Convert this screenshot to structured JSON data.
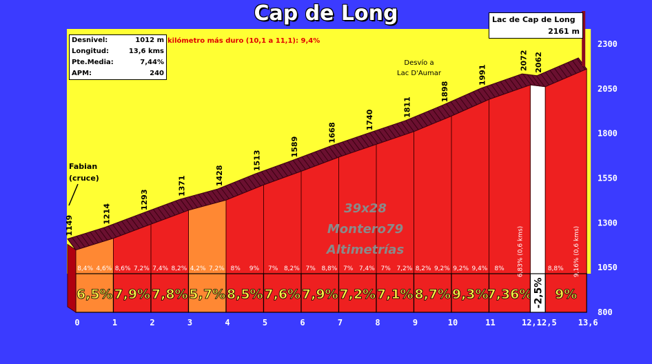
{
  "title": "Cap de Long",
  "stats": [
    {
      "label": "Desnivel:",
      "value": "1012 m"
    },
    {
      "label": "Longitud:",
      "value": "13,6 kms"
    },
    {
      "label": "Pte.Media:",
      "value": "7,44%"
    },
    {
      "label": "APM:",
      "value": "240"
    }
  ],
  "hardest_km_note": "kilómetro más duro (10,1 a 11,1):   9,4%",
  "summit": {
    "name": "Lac de Cap de Long",
    "altitude": "2161 m"
  },
  "start_label": [
    "Fabian",
    "(cruce)"
  ],
  "branch_label": [
    "Desvío a",
    "Lac D'Aumar"
  ],
  "watermark": [
    "39x28",
    "Montero79",
    "Altimetrías"
  ],
  "colors": {
    "background": "#3b3bff",
    "sky": "#ffff33",
    "bar": "#ee2020",
    "bar_easy": "#ff8833",
    "bar_descent": "#ffffff",
    "crest": "#6b1030"
  },
  "chart_data": {
    "type": "area",
    "xlabel": "",
    "ylabel": "",
    "ylim": [
      800,
      2300
    ],
    "y_ticks": [
      800,
      1050,
      1300,
      1550,
      1800,
      2050,
      2300
    ],
    "x_tick_labels": [
      "0",
      "1",
      "2",
      "3",
      "4",
      "5",
      "6",
      "7",
      "8",
      "9",
      "10",
      "11",
      "12,1",
      "12,5",
      "13,6"
    ],
    "altitude_points": [
      {
        "km": 0,
        "label": "1149"
      },
      {
        "km": 1,
        "label": "1214"
      },
      {
        "km": 2,
        "label": "1293"
      },
      {
        "km": 3,
        "label": "1371"
      },
      {
        "km": 4,
        "label": "1428"
      },
      {
        "km": 5,
        "label": "1513"
      },
      {
        "km": 6,
        "label": "1589"
      },
      {
        "km": 7,
        "label": "1668"
      },
      {
        "km": 8,
        "label": "1740"
      },
      {
        "km": 9,
        "label": "1811"
      },
      {
        "km": 10,
        "label": "1898"
      },
      {
        "km": 11,
        "label": "1991"
      },
      {
        "km": 12.1,
        "label": "2072"
      },
      {
        "km": 12.5,
        "label": "2062"
      }
    ],
    "profile": [
      {
        "km": 0,
        "alt": 1149
      },
      {
        "km": 1,
        "alt": 1214
      },
      {
        "km": 2,
        "alt": 1293
      },
      {
        "km": 3,
        "alt": 1371
      },
      {
        "km": 4,
        "alt": 1428
      },
      {
        "km": 5,
        "alt": 1513
      },
      {
        "km": 6,
        "alt": 1589
      },
      {
        "km": 7,
        "alt": 1668
      },
      {
        "km": 8,
        "alt": 1740
      },
      {
        "km": 9,
        "alt": 1811
      },
      {
        "km": 10,
        "alt": 1898
      },
      {
        "km": 11,
        "alt": 1991
      },
      {
        "km": 12.1,
        "alt": 2072
      },
      {
        "km": 12.5,
        "alt": 2062
      },
      {
        "km": 13.6,
        "alt": 2161
      }
    ],
    "segments": [
      {
        "from": 0,
        "to": 1,
        "avg": "6,5%",
        "kind": "easy",
        "halves": [
          "8,4%",
          "4,6%"
        ]
      },
      {
        "from": 1,
        "to": 2,
        "avg": "7,9%",
        "kind": "hard",
        "halves": [
          "8,6%",
          "7,2%"
        ]
      },
      {
        "from": 2,
        "to": 3,
        "avg": "7,8%",
        "kind": "hard",
        "halves": [
          "7,4%",
          "8,2%"
        ]
      },
      {
        "from": 3,
        "to": 4,
        "avg": "5,7%",
        "kind": "easy",
        "halves": [
          "4,2%",
          "7,2%"
        ]
      },
      {
        "from": 4,
        "to": 5,
        "avg": "8,5%",
        "kind": "hard",
        "halves": [
          "8%",
          "9%"
        ]
      },
      {
        "from": 5,
        "to": 6,
        "avg": "7,6%",
        "kind": "hard",
        "halves": [
          "7%",
          "8,2%"
        ]
      },
      {
        "from": 6,
        "to": 7,
        "avg": "7,9%",
        "kind": "hard",
        "halves": [
          "7%",
          "8,8%"
        ]
      },
      {
        "from": 7,
        "to": 8,
        "avg": "7,2%",
        "kind": "hard",
        "halves": [
          "7%",
          "7,4%"
        ]
      },
      {
        "from": 8,
        "to": 9,
        "avg": "7,1%",
        "kind": "hard",
        "halves": [
          "7%",
          "7,2%"
        ]
      },
      {
        "from": 9,
        "to": 10,
        "avg": "8,7%",
        "kind": "hard",
        "halves": [
          "8,2%",
          "9,2%"
        ]
      },
      {
        "from": 10,
        "to": 11,
        "avg": "9,3%",
        "kind": "hard",
        "halves": [
          "9,2%",
          "9,4%"
        ]
      },
      {
        "from": 11,
        "to": 12.1,
        "avg": "7,36%",
        "kind": "hard",
        "halves": [
          "8%",
          "6,83% (0,6 kms)"
        ]
      },
      {
        "from": 12.1,
        "to": 12.5,
        "avg": "-2,5%",
        "kind": "descent",
        "halves": []
      },
      {
        "from": 12.5,
        "to": 13.6,
        "avg": "9%",
        "kind": "hard",
        "halves": [
          "8,8%",
          "9,16% (0,6 kms)"
        ]
      }
    ]
  }
}
